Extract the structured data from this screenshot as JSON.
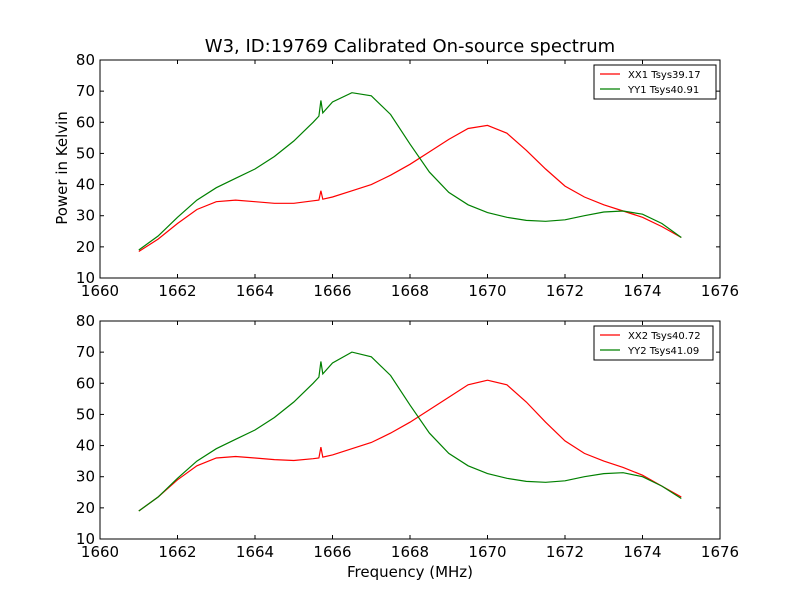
{
  "chart_data": [
    {
      "type": "line",
      "title": "W3, ID:19769 Calibrated On-source spectrum",
      "xlabel": "",
      "ylabel": "Power in Kelvin",
      "xlim": [
        1660,
        1676
      ],
      "ylim": [
        10,
        80
      ],
      "xticks": [
        1660,
        1662,
        1664,
        1666,
        1668,
        1670,
        1672,
        1674,
        1676
      ],
      "yticks": [
        10,
        20,
        30,
        40,
        50,
        60,
        70,
        80
      ],
      "legend_position": "top-right",
      "series": [
        {
          "name": "XX1 Tsys39.17",
          "color": "#ff0000",
          "x": [
            1661.0,
            1661.5,
            1662.0,
            1662.5,
            1663.0,
            1663.5,
            1664.0,
            1664.5,
            1665.0,
            1665.5,
            1665.65,
            1665.7,
            1665.75,
            1666.0,
            1666.5,
            1667.0,
            1667.5,
            1668.0,
            1668.5,
            1669.0,
            1669.5,
            1670.0,
            1670.5,
            1671.0,
            1671.5,
            1672.0,
            1672.5,
            1673.0,
            1673.5,
            1674.0,
            1674.5,
            1675.0
          ],
          "y": [
            18.5,
            22.5,
            27.5,
            32.0,
            34.5,
            35.0,
            34.5,
            34.0,
            34.0,
            34.8,
            35.0,
            38.0,
            35.3,
            36.0,
            38.0,
            40.0,
            43.0,
            46.5,
            50.5,
            54.5,
            58.0,
            59.0,
            56.5,
            51.0,
            45.0,
            39.5,
            36.0,
            33.5,
            31.5,
            29.5,
            26.5,
            23.0
          ]
        },
        {
          "name": "YY1 Tsys40.91",
          "color": "#008000",
          "x": [
            1661.0,
            1661.5,
            1662.0,
            1662.5,
            1663.0,
            1663.5,
            1664.0,
            1664.5,
            1665.0,
            1665.5,
            1665.65,
            1665.7,
            1665.75,
            1666.0,
            1666.5,
            1667.0,
            1667.5,
            1668.0,
            1668.5,
            1669.0,
            1669.5,
            1670.0,
            1670.5,
            1671.0,
            1671.5,
            1672.0,
            1672.5,
            1673.0,
            1673.5,
            1674.0,
            1674.5,
            1675.0
          ],
          "y": [
            19.0,
            23.5,
            29.5,
            35.0,
            39.0,
            42.0,
            45.0,
            49.0,
            54.0,
            60.0,
            62.0,
            67.0,
            63.0,
            66.5,
            69.5,
            68.5,
            62.5,
            53.0,
            44.0,
            37.5,
            33.5,
            31.0,
            29.5,
            28.5,
            28.2,
            28.7,
            30.0,
            31.2,
            31.5,
            30.5,
            27.5,
            23.0
          ]
        }
      ]
    },
    {
      "type": "line",
      "title": "",
      "xlabel": "Frequency (MHz)",
      "ylabel": "",
      "xlim": [
        1660,
        1676
      ],
      "ylim": [
        10,
        80
      ],
      "xticks": [
        1660,
        1662,
        1664,
        1666,
        1668,
        1670,
        1672,
        1674,
        1676
      ],
      "yticks": [
        10,
        20,
        30,
        40,
        50,
        60,
        70,
        80
      ],
      "legend_position": "top-right",
      "series": [
        {
          "name": "XX2 Tsys40.72",
          "color": "#ff0000",
          "x": [
            1661.0,
            1661.5,
            1662.0,
            1662.5,
            1663.0,
            1663.5,
            1664.0,
            1664.5,
            1665.0,
            1665.5,
            1665.65,
            1665.7,
            1665.75,
            1666.0,
            1666.5,
            1667.0,
            1667.5,
            1668.0,
            1668.5,
            1669.0,
            1669.5,
            1670.0,
            1670.5,
            1671.0,
            1671.5,
            1672.0,
            1672.5,
            1673.0,
            1673.5,
            1674.0,
            1674.5,
            1675.0
          ],
          "y": [
            19.0,
            23.5,
            29.0,
            33.5,
            36.0,
            36.5,
            36.0,
            35.5,
            35.2,
            35.8,
            36.0,
            39.5,
            36.3,
            37.0,
            39.0,
            41.0,
            44.0,
            47.5,
            51.5,
            55.5,
            59.5,
            61.0,
            59.5,
            54.0,
            47.5,
            41.5,
            37.5,
            35.0,
            33.0,
            30.5,
            27.0,
            23.5
          ]
        },
        {
          "name": "YY2 Tsys41.09",
          "color": "#008000",
          "x": [
            1661.0,
            1661.5,
            1662.0,
            1662.5,
            1663.0,
            1663.5,
            1664.0,
            1664.5,
            1665.0,
            1665.5,
            1665.65,
            1665.7,
            1665.75,
            1666.0,
            1666.5,
            1667.0,
            1667.5,
            1668.0,
            1668.5,
            1669.0,
            1669.5,
            1670.0,
            1670.5,
            1671.0,
            1671.5,
            1672.0,
            1672.5,
            1673.0,
            1673.5,
            1674.0,
            1674.5,
            1675.0
          ],
          "y": [
            19.0,
            23.5,
            29.5,
            35.0,
            39.0,
            42.0,
            45.0,
            49.0,
            54.0,
            60.0,
            62.0,
            67.0,
            63.0,
            66.5,
            70.0,
            68.5,
            62.5,
            53.0,
            44.0,
            37.5,
            33.5,
            31.0,
            29.5,
            28.5,
            28.2,
            28.7,
            30.0,
            31.0,
            31.3,
            30.0,
            27.0,
            23.0
          ]
        }
      ]
    }
  ]
}
